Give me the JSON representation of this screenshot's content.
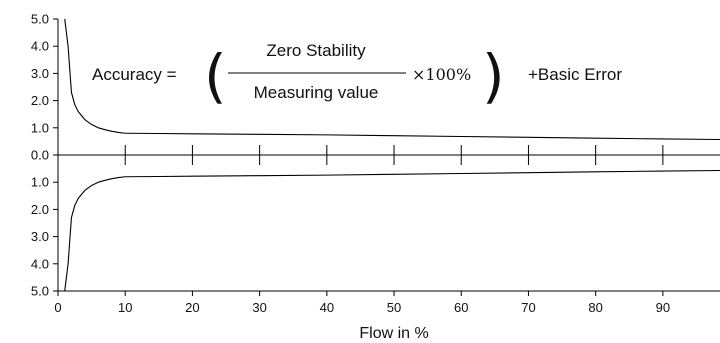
{
  "chart_data": {
    "type": "line",
    "xlabel": "Flow in %",
    "x_ticks": [
      "0",
      "10",
      "20",
      "30",
      "40",
      "50",
      "60",
      "70",
      "80",
      "90"
    ],
    "y_ticks_upper": [
      "5.0",
      "4.0",
      "3.0",
      "2.0",
      "1.0",
      "0.0"
    ],
    "y_ticks_lower": [
      "1.0",
      "2.0",
      "3.0",
      "4.0",
      "5.0"
    ],
    "xlim": [
      0,
      98.5
    ],
    "ylim": [
      -5,
      5
    ],
    "series": [
      {
        "x": [
          1.0,
          1.5,
          2.0,
          2.5,
          3,
          4,
          5,
          6,
          7,
          8,
          9,
          10,
          15,
          20,
          30,
          40,
          50,
          60,
          70,
          80,
          90,
          98.5
        ],
        "y": [
          5.0,
          4.0,
          2.3,
          1.85,
          1.6,
          1.3,
          1.12,
          1.0,
          0.93,
          0.87,
          0.83,
          0.8,
          0.79,
          0.78,
          0.76,
          0.74,
          0.71,
          0.68,
          0.65,
          0.62,
          0.59,
          0.57
        ]
      },
      {
        "x": [
          1.0,
          1.5,
          2.0,
          2.5,
          3,
          4,
          5,
          6,
          7,
          8,
          9,
          10,
          15,
          20,
          30,
          40,
          50,
          60,
          70,
          80,
          90,
          98.5
        ],
        "y": [
          -5.0,
          -4.0,
          -2.3,
          -1.85,
          -1.6,
          -1.3,
          -1.12,
          -1.0,
          -0.93,
          -0.87,
          -0.83,
          -0.8,
          -0.79,
          -0.78,
          -0.76,
          -0.74,
          -0.71,
          -0.68,
          -0.65,
          -0.62,
          -0.59,
          -0.57
        ]
      }
    ],
    "zero_line_ticks": [
      10,
      20,
      30,
      40,
      50,
      60,
      70,
      80,
      90
    ],
    "annotation": {
      "lhs": "Accuracy =",
      "numerator": "Zero Stability",
      "denominator": "Measuring value",
      "multiplier": "×100%",
      "suffix": "+Basic Error"
    },
    "grid": false,
    "line_color": "#000000"
  }
}
